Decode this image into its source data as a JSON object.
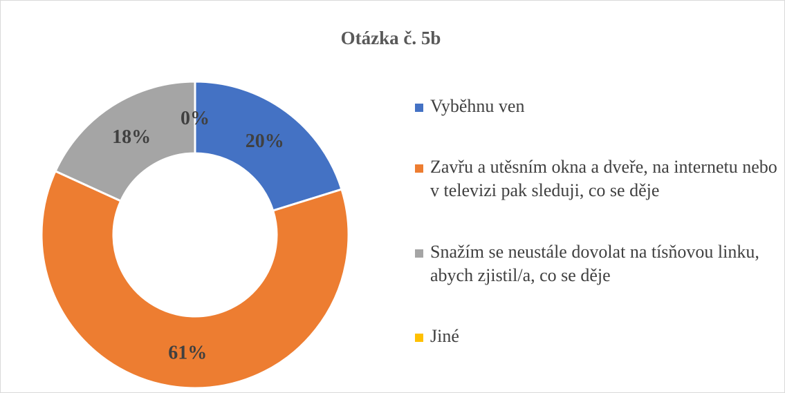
{
  "chart_data": {
    "type": "donut",
    "title": "Otázka č. 5b",
    "categories": [
      "Vyběhnu ven",
      "Zavřu a utěsním okna a dveře, na internetu nebo v televizi pak sleduji, co se děje",
      "Snažím se neustále dovolat na tísňovou linku, abych zjistil/a, co se děje",
      "Jiné"
    ],
    "values": [
      20,
      61,
      18,
      0
    ],
    "value_labels": [
      "20%",
      "61%",
      "18%",
      "0%"
    ],
    "colors": [
      "#4472c4",
      "#ed7d31",
      "#a5a5a5",
      "#ffc000"
    ],
    "legend": "right"
  }
}
